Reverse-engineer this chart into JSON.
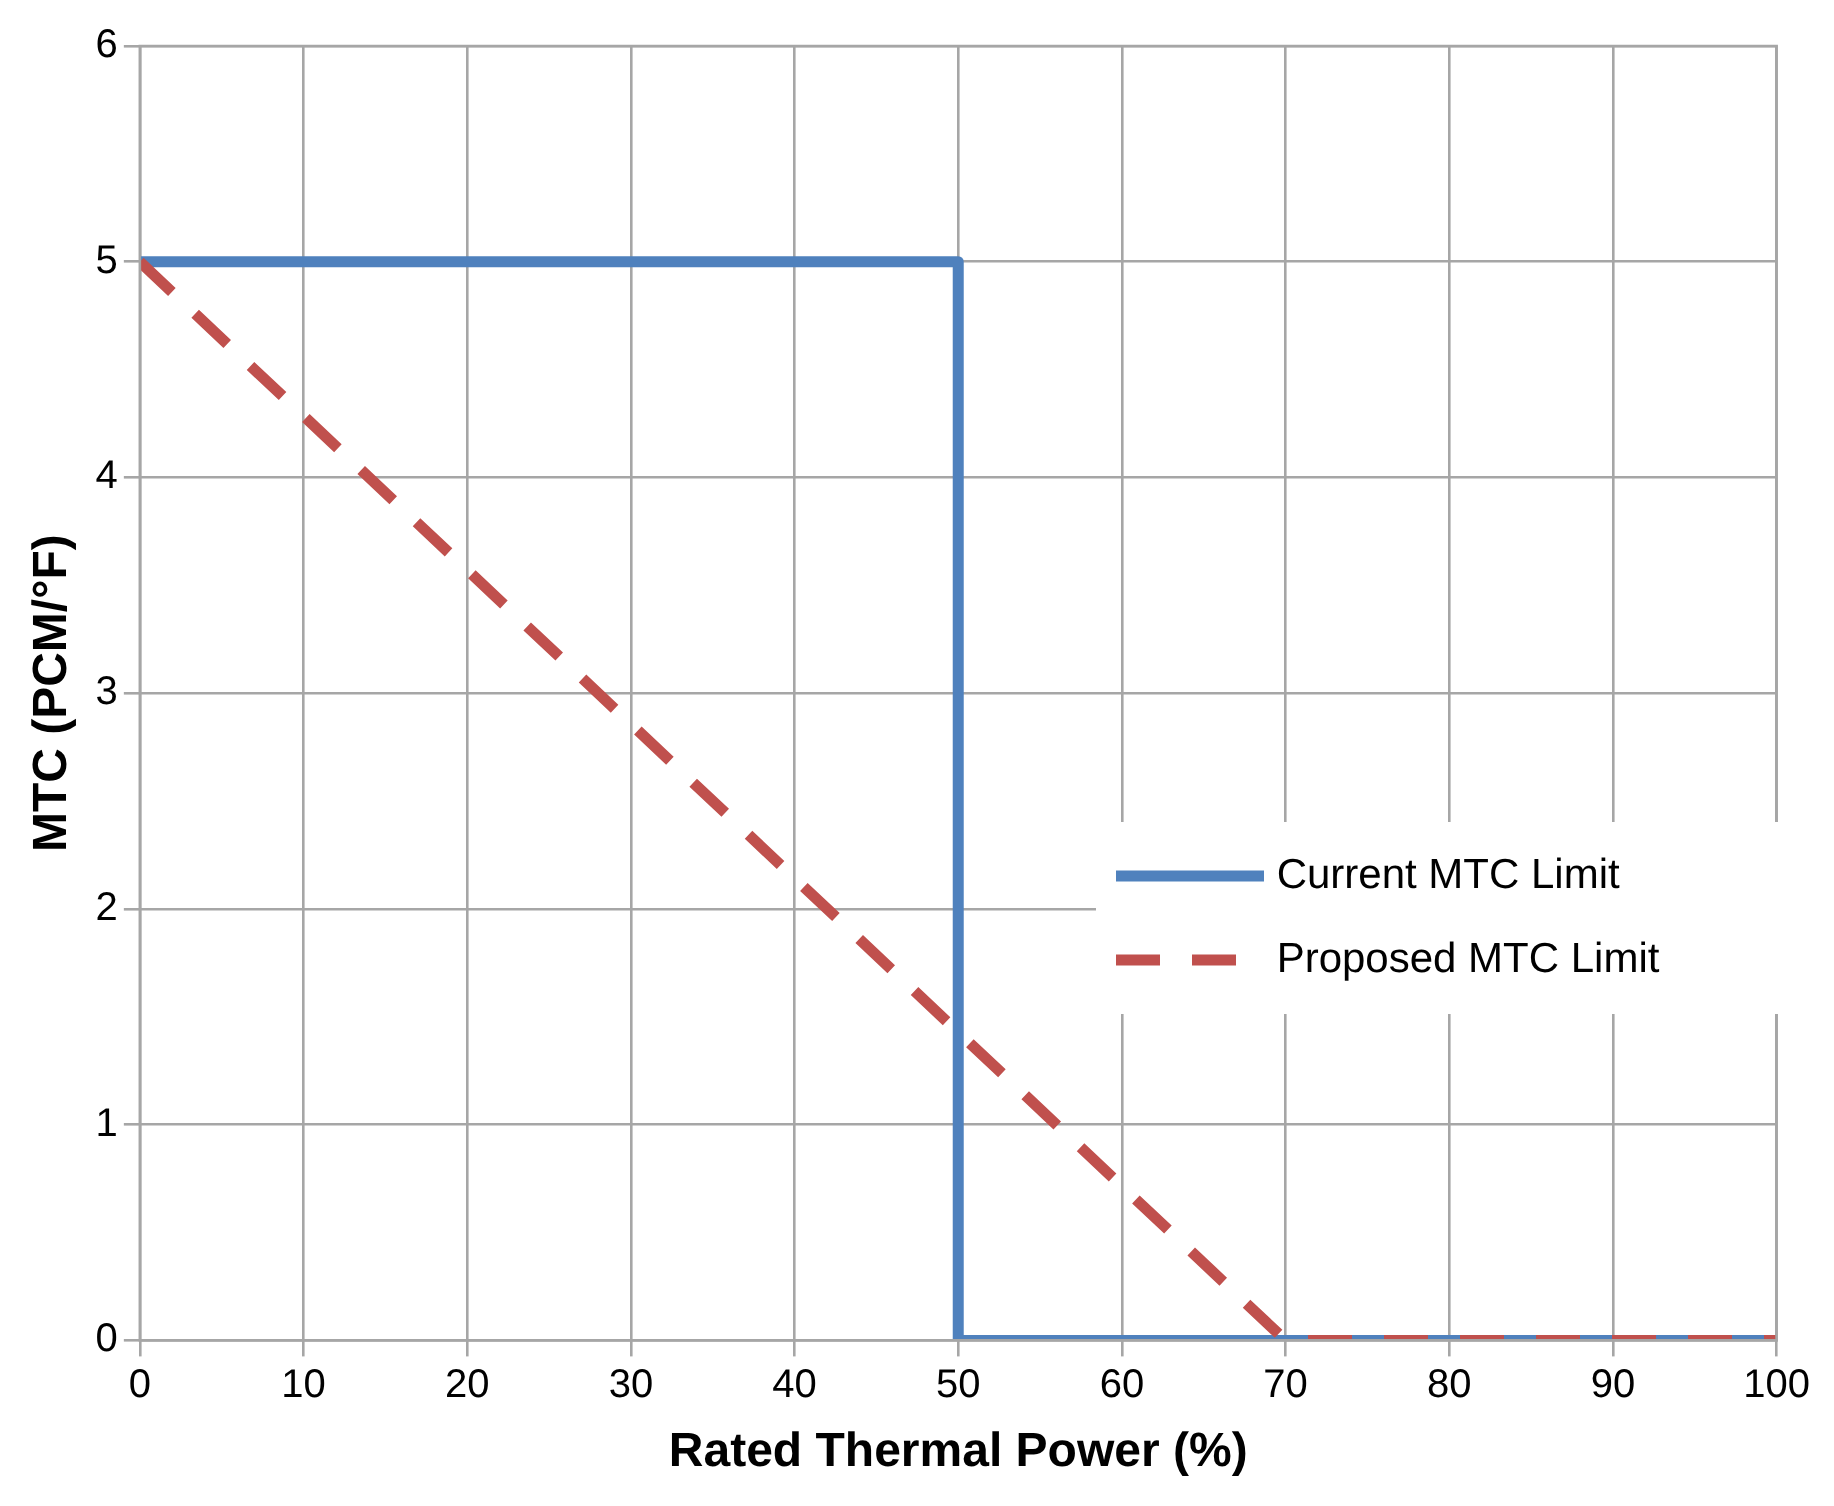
{
  "chart_data": {
    "type": "line",
    "xlabel": "Rated Thermal Power (%)",
    "ylabel": "MTC (PCM/°F)",
    "series": [
      {
        "name": "Current MTC Limit",
        "color": "#4f81bd",
        "x": [
          0,
          50,
          50,
          100
        ],
        "values": [
          5,
          5,
          0,
          0
        ],
        "line_style": "solid"
      },
      {
        "name": "Proposed MTC Limit",
        "color": "#c0504d",
        "x": [
          0,
          70,
          100
        ],
        "values": [
          5,
          0,
          0
        ],
        "line_style": "dashed"
      }
    ],
    "xlim": [
      0,
      100
    ],
    "xticks": [
      0,
      10,
      20,
      30,
      40,
      50,
      60,
      70,
      80,
      90,
      100
    ],
    "ylim": [
      0,
      6
    ],
    "yticks": [
      0,
      1,
      2,
      3,
      4,
      5,
      6
    ],
    "grid": true,
    "legend": "right",
    "marker": "none"
  }
}
